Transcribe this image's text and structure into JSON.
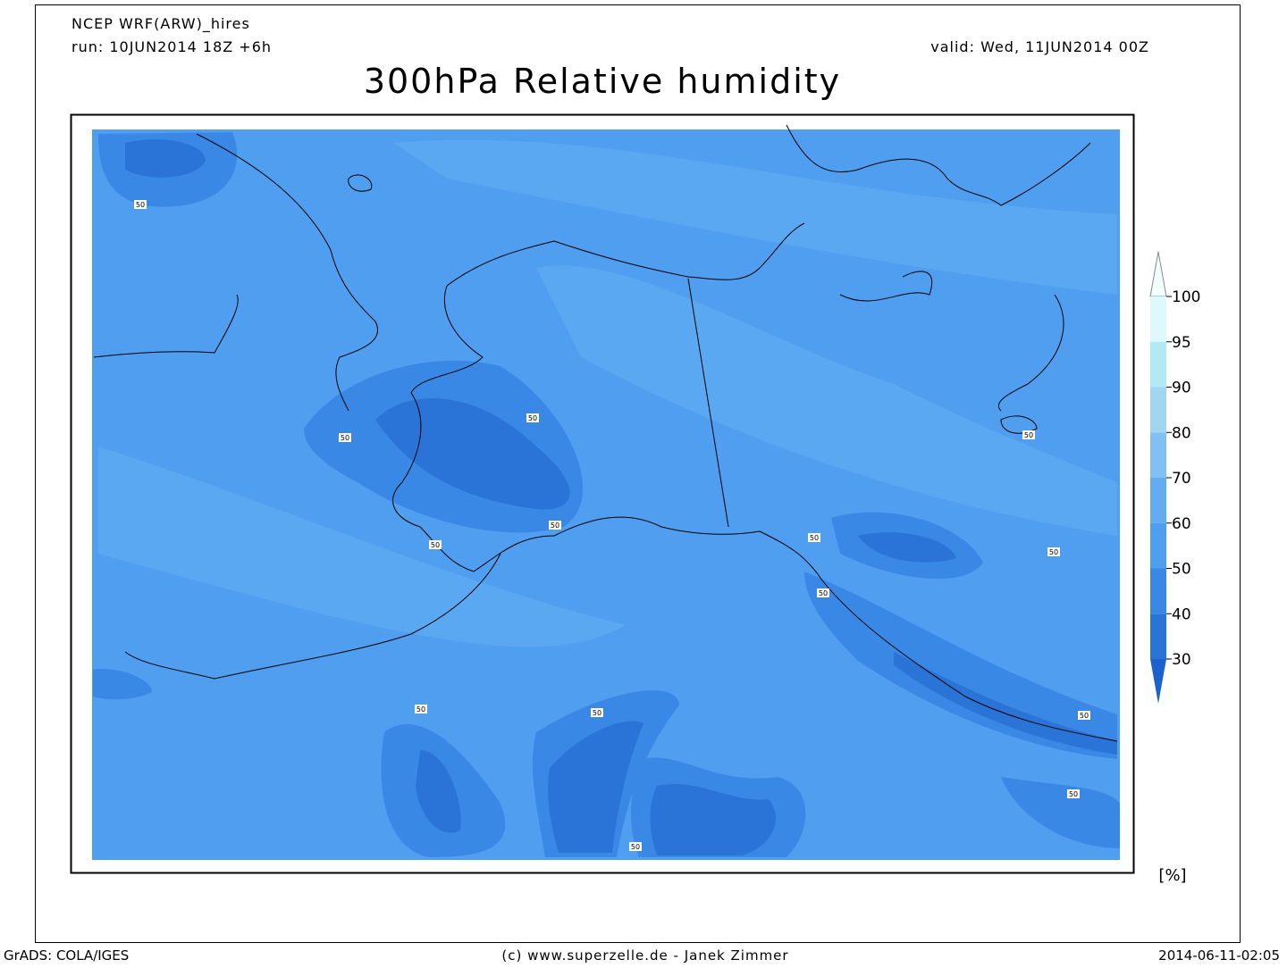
{
  "header": {
    "model": "NCEP WRF(ARW)_hires",
    "run": "run: 10JUN2014 18Z +6h",
    "valid": "valid: Wed, 11JUN2014 00Z",
    "title": "300hPa Relative humidity"
  },
  "map": {
    "contour_labels": [
      "50",
      "50",
      "50",
      "50",
      "50",
      "50",
      "50",
      "50",
      "50",
      "50",
      "50",
      "50",
      "50",
      "50"
    ]
  },
  "legend": {
    "ticks": [
      100,
      95,
      90,
      80,
      70,
      60,
      50,
      40,
      30
    ],
    "unit": "[%]",
    "colors": [
      "#f2ffff",
      "#def9fb",
      "#b2eaf4",
      "#9fd6f2",
      "#80c0f2",
      "#63acf0",
      "#4f9ef0",
      "#3a88e6",
      "#2a74d8",
      "#1c62cc"
    ]
  },
  "footer": {
    "left": "GrADS: COLA/IGES",
    "center": "(c) www.superzelle.de - Janek Zimmer",
    "right": "2014-06-11-02:05"
  }
}
